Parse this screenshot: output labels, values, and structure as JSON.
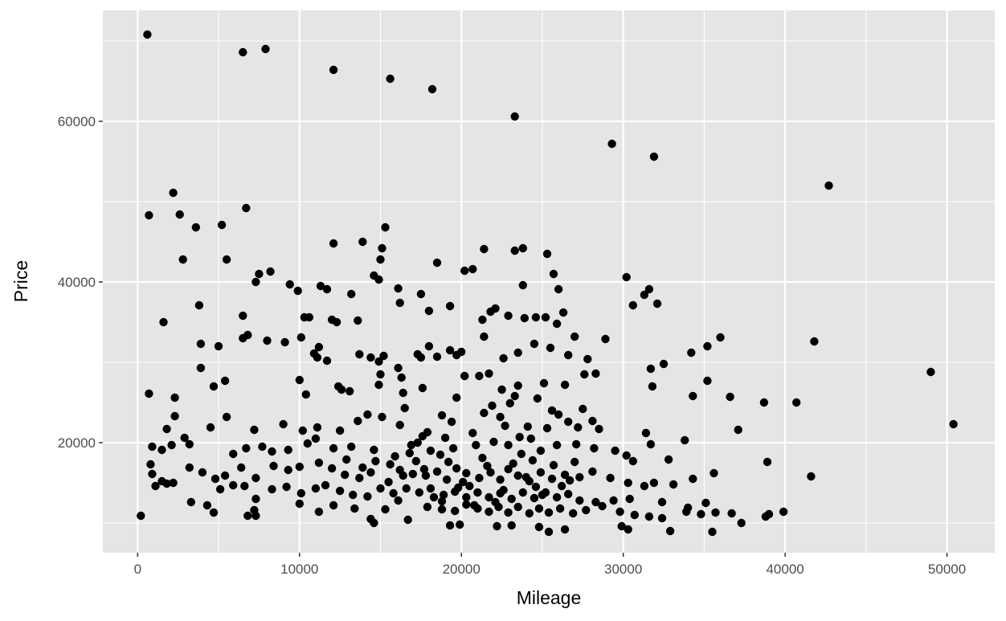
{
  "chart_data": {
    "type": "scatter",
    "xlabel": "Mileage",
    "ylabel": "Price",
    "xlim": [
      -2150,
      52950
    ],
    "ylim": [
      6300,
      73800
    ],
    "x_ticks": [
      0,
      10000,
      20000,
      30000,
      40000,
      50000
    ],
    "x_tick_labels": [
      "0",
      "10000",
      "20000",
      "30000",
      "40000",
      "50000"
    ],
    "y_ticks": [
      20000,
      40000,
      60000
    ],
    "y_tick_labels": [
      "20000",
      "40000",
      "60000"
    ],
    "grid": true,
    "colors": {
      "panel": "#e5e5e5",
      "grid": "#ffffff",
      "point": "#000000"
    },
    "points": [
      [
        600,
        70800
      ],
      [
        6500,
        68600
      ],
      [
        7900,
        69000
      ],
      [
        12100,
        66400
      ],
      [
        15600,
        65300
      ],
      [
        18200,
        64000
      ],
      [
        23300,
        60600
      ],
      [
        29300,
        57200
      ],
      [
        31900,
        55600
      ],
      [
        42700,
        52000
      ],
      [
        2200,
        51100
      ],
      [
        700,
        48300
      ],
      [
        2600,
        48400
      ],
      [
        6700,
        49200
      ],
      [
        5200,
        47100
      ],
      [
        3600,
        46800
      ],
      [
        2800,
        42800
      ],
      [
        5500,
        42800
      ],
      [
        15300,
        46800
      ],
      [
        12100,
        44800
      ],
      [
        13900,
        45000
      ],
      [
        15100,
        44200
      ],
      [
        21400,
        44100
      ],
      [
        23300,
        43900
      ],
      [
        23800,
        44200
      ],
      [
        25300,
        43500
      ],
      [
        7500,
        41000
      ],
      [
        7300,
        40000
      ],
      [
        8200,
        41300
      ],
      [
        9400,
        39700
      ],
      [
        9900,
        38900
      ],
      [
        11300,
        39500
      ],
      [
        11700,
        39100
      ],
      [
        14600,
        40800
      ],
      [
        14900,
        40300
      ],
      [
        13200,
        38500
      ],
      [
        15000,
        42800
      ],
      [
        16100,
        39200
      ],
      [
        18500,
        42400
      ],
      [
        20200,
        41400
      ],
      [
        20700,
        41600
      ],
      [
        25700,
        41000
      ],
      [
        23800,
        39600
      ],
      [
        26000,
        39100
      ],
      [
        30200,
        40600
      ],
      [
        31600,
        39100
      ],
      [
        31300,
        38400
      ],
      [
        32100,
        37300
      ],
      [
        30600,
        37100
      ],
      [
        3800,
        37100
      ],
      [
        1600,
        35000
      ],
      [
        6500,
        35800
      ],
      [
        10300,
        35600
      ],
      [
        10600,
        35600
      ],
      [
        12300,
        35000
      ],
      [
        12000,
        35300
      ],
      [
        13600,
        35200
      ],
      [
        16200,
        37400
      ],
      [
        17500,
        38500
      ],
      [
        18000,
        36400
      ],
      [
        19300,
        37000
      ],
      [
        21300,
        35300
      ],
      [
        21800,
        36300
      ],
      [
        22100,
        36700
      ],
      [
        22900,
        35800
      ],
      [
        23900,
        35500
      ],
      [
        24600,
        35600
      ],
      [
        25200,
        35600
      ],
      [
        25900,
        34800
      ],
      [
        26300,
        36200
      ],
      [
        28900,
        32900
      ],
      [
        3900,
        32300
      ],
      [
        5000,
        32000
      ],
      [
        6500,
        33000
      ],
      [
        6800,
        33400
      ],
      [
        8000,
        32700
      ],
      [
        9100,
        32500
      ],
      [
        10100,
        33100
      ],
      [
        10900,
        31100
      ],
      [
        11200,
        31900
      ],
      [
        11700,
        30200
      ],
      [
        11100,
        30600
      ],
      [
        13700,
        31000
      ],
      [
        14400,
        30600
      ],
      [
        14900,
        30100
      ],
      [
        15200,
        30800
      ],
      [
        16100,
        29300
      ],
      [
        17300,
        31000
      ],
      [
        17500,
        30600
      ],
      [
        18000,
        32000
      ],
      [
        18500,
        30700
      ],
      [
        19300,
        31500
      ],
      [
        19700,
        30900
      ],
      [
        20000,
        31300
      ],
      [
        21400,
        33200
      ],
      [
        22600,
        30500
      ],
      [
        23500,
        31200
      ],
      [
        24500,
        32300
      ],
      [
        25500,
        31800
      ],
      [
        26600,
        30900
      ],
      [
        27000,
        33200
      ],
      [
        27800,
        30400
      ],
      [
        31700,
        29200
      ],
      [
        32500,
        29800
      ],
      [
        34200,
        31200
      ],
      [
        35200,
        32000
      ],
      [
        36000,
        33100
      ],
      [
        41800,
        32600
      ],
      [
        3900,
        29300
      ],
      [
        4700,
        27000
      ],
      [
        5400,
        27700
      ],
      [
        10000,
        27800
      ],
      [
        10400,
        26000
      ],
      [
        12400,
        27000
      ],
      [
        12600,
        26600
      ],
      [
        13100,
        26400
      ],
      [
        14900,
        27200
      ],
      [
        15000,
        28500
      ],
      [
        16300,
        28100
      ],
      [
        16400,
        26200
      ],
      [
        17600,
        26800
      ],
      [
        19700,
        25600
      ],
      [
        20200,
        28300
      ],
      [
        21100,
        28300
      ],
      [
        21700,
        28600
      ],
      [
        22500,
        26600
      ],
      [
        23500,
        27100
      ],
      [
        24700,
        25500
      ],
      [
        25100,
        27400
      ],
      [
        26400,
        27200
      ],
      [
        27600,
        28500
      ],
      [
        28300,
        28600
      ],
      [
        31800,
        27000
      ],
      [
        35200,
        27700
      ],
      [
        34300,
        25800
      ],
      [
        36600,
        25700
      ],
      [
        38700,
        25000
      ],
      [
        40700,
        25000
      ],
      [
        49000,
        28800
      ],
      [
        700,
        26100
      ],
      [
        2300,
        25600
      ],
      [
        2300,
        23300
      ],
      [
        1800,
        21700
      ],
      [
        2900,
        20600
      ],
      [
        4500,
        21900
      ],
      [
        5500,
        23200
      ],
      [
        7200,
        21600
      ],
      [
        9000,
        22300
      ],
      [
        10200,
        21500
      ],
      [
        11100,
        21900
      ],
      [
        12500,
        21500
      ],
      [
        13600,
        22700
      ],
      [
        14200,
        23500
      ],
      [
        15100,
        23200
      ],
      [
        16200,
        22200
      ],
      [
        16500,
        24300
      ],
      [
        17900,
        21300
      ],
      [
        18800,
        23400
      ],
      [
        19400,
        22600
      ],
      [
        21400,
        23700
      ],
      [
        22400,
        23200
      ],
      [
        23000,
        24900
      ],
      [
        24100,
        22000
      ],
      [
        25600,
        24000
      ],
      [
        26600,
        22600
      ],
      [
        27200,
        21900
      ],
      [
        28100,
        22700
      ],
      [
        31400,
        21200
      ],
      [
        31700,
        19800
      ],
      [
        33800,
        20300
      ],
      [
        37100,
        21600
      ],
      [
        50400,
        22300
      ],
      [
        900,
        19500
      ],
      [
        1500,
        19100
      ],
      [
        2100,
        19700
      ],
      [
        3200,
        19800
      ],
      [
        5900,
        18600
      ],
      [
        6700,
        19300
      ],
      [
        7700,
        19500
      ],
      [
        8300,
        18900
      ],
      [
        9300,
        19100
      ],
      [
        10500,
        19900
      ],
      [
        11000,
        20500
      ],
      [
        12100,
        19300
      ],
      [
        13200,
        19500
      ],
      [
        14600,
        19100
      ],
      [
        15900,
        18300
      ],
      [
        16900,
        19700
      ],
      [
        17600,
        20800
      ],
      [
        18100,
        19000
      ],
      [
        18700,
        18500
      ],
      [
        19500,
        19300
      ],
      [
        20900,
        19700
      ],
      [
        22000,
        20100
      ],
      [
        22900,
        19700
      ],
      [
        23600,
        20700
      ],
      [
        24900,
        19000
      ],
      [
        25900,
        19700
      ],
      [
        27100,
        19800
      ],
      [
        28200,
        19300
      ],
      [
        29500,
        19000
      ],
      [
        30200,
        18400
      ],
      [
        30600,
        17700
      ],
      [
        32800,
        17900
      ],
      [
        38900,
        17600
      ],
      [
        800,
        17300
      ],
      [
        900,
        16100
      ],
      [
        1500,
        15200
      ],
      [
        2200,
        15000
      ],
      [
        3200,
        16900
      ],
      [
        4000,
        16300
      ],
      [
        4800,
        15500
      ],
      [
        5400,
        15900
      ],
      [
        6400,
        16900
      ],
      [
        7300,
        15600
      ],
      [
        8400,
        17100
      ],
      [
        9300,
        16600
      ],
      [
        10000,
        17000
      ],
      [
        11200,
        17500
      ],
      [
        12000,
        16800
      ],
      [
        12800,
        16000
      ],
      [
        13700,
        15600
      ],
      [
        14400,
        16300
      ],
      [
        15500,
        15100
      ],
      [
        16200,
        16600
      ],
      [
        17000,
        16100
      ],
      [
        17800,
        15900
      ],
      [
        18500,
        16400
      ],
      [
        19100,
        15400
      ],
      [
        19700,
        16800
      ],
      [
        20300,
        16200
      ],
      [
        21100,
        15600
      ],
      [
        21800,
        16300
      ],
      [
        22400,
        15400
      ],
      [
        22900,
        16700
      ],
      [
        23500,
        15900
      ],
      [
        24200,
        15200
      ],
      [
        24900,
        16300
      ],
      [
        25600,
        15500
      ],
      [
        26400,
        16000
      ],
      [
        27300,
        15700
      ],
      [
        28100,
        16400
      ],
      [
        29200,
        15600
      ],
      [
        30300,
        15000
      ],
      [
        31300,
        14600
      ],
      [
        31900,
        15000
      ],
      [
        33100,
        14800
      ],
      [
        34300,
        15500
      ],
      [
        35600,
        16200
      ],
      [
        41600,
        15800
      ],
      [
        1100,
        14600
      ],
      [
        1800,
        14900
      ],
      [
        3300,
        12600
      ],
      [
        4300,
        12200
      ],
      [
        5100,
        14200
      ],
      [
        5900,
        14700
      ],
      [
        6600,
        14600
      ],
      [
        7300,
        13000
      ],
      [
        8300,
        14200
      ],
      [
        9200,
        14500
      ],
      [
        10100,
        13700
      ],
      [
        11000,
        14300
      ],
      [
        11600,
        14700
      ],
      [
        12500,
        14000
      ],
      [
        13300,
        13500
      ],
      [
        14200,
        13300
      ],
      [
        15000,
        14300
      ],
      [
        15800,
        13700
      ],
      [
        16600,
        14300
      ],
      [
        17400,
        13800
      ],
      [
        18100,
        14300
      ],
      [
        18900,
        13500
      ],
      [
        19600,
        13900
      ],
      [
        20300,
        13200
      ],
      [
        21000,
        13800
      ],
      [
        21700,
        13200
      ],
      [
        22400,
        13700
      ],
      [
        23100,
        13000
      ],
      [
        23800,
        13800
      ],
      [
        24500,
        13100
      ],
      [
        25200,
        13800
      ],
      [
        25900,
        13200
      ],
      [
        26600,
        13600
      ],
      [
        27300,
        12800
      ],
      [
        28300,
        12600
      ],
      [
        29400,
        12800
      ],
      [
        30400,
        13000
      ],
      [
        32400,
        12600
      ],
      [
        34000,
        11900
      ],
      [
        35100,
        12500
      ],
      [
        200,
        10900
      ],
      [
        4700,
        11300
      ],
      [
        6800,
        10900
      ],
      [
        7200,
        11600
      ],
      [
        7300,
        10900
      ],
      [
        10000,
        12400
      ],
      [
        11200,
        11400
      ],
      [
        12100,
        12200
      ],
      [
        13400,
        11800
      ],
      [
        14400,
        10500
      ],
      [
        15300,
        11700
      ],
      [
        16100,
        12800
      ],
      [
        16700,
        10400
      ],
      [
        17900,
        12000
      ],
      [
        18800,
        11700
      ],
      [
        19600,
        11500
      ],
      [
        20300,
        12300
      ],
      [
        21000,
        11800
      ],
      [
        21700,
        11400
      ],
      [
        22300,
        12000
      ],
      [
        22900,
        11300
      ],
      [
        23500,
        12000
      ],
      [
        24200,
        11200
      ],
      [
        24800,
        11800
      ],
      [
        25400,
        11300
      ],
      [
        26100,
        11800
      ],
      [
        26900,
        11200
      ],
      [
        27700,
        11600
      ],
      [
        28700,
        12100
      ],
      [
        29800,
        11400
      ],
      [
        30700,
        11000
      ],
      [
        31600,
        10800
      ],
      [
        32400,
        10600
      ],
      [
        33900,
        11400
      ],
      [
        34800,
        11100
      ],
      [
        35700,
        11300
      ],
      [
        36700,
        11200
      ],
      [
        38800,
        10800
      ],
      [
        39900,
        11400
      ],
      [
        14600,
        10000
      ],
      [
        19300,
        9700
      ],
      [
        19900,
        9800
      ],
      [
        22200,
        9600
      ],
      [
        23100,
        9700
      ],
      [
        24800,
        9500
      ],
      [
        25400,
        8900
      ],
      [
        26400,
        9200
      ],
      [
        29900,
        9600
      ],
      [
        30300,
        9200
      ],
      [
        32900,
        9000
      ],
      [
        35500,
        8900
      ],
      [
        37300,
        10000
      ],
      [
        39000,
        11100
      ],
      [
        18800,
        12700
      ],
      [
        19200,
        17600
      ],
      [
        20500,
        14600
      ],
      [
        20800,
        12200
      ],
      [
        21600,
        17100
      ],
      [
        22600,
        14100
      ],
      [
        23200,
        17400
      ],
      [
        24000,
        15700
      ],
      [
        24600,
        14500
      ],
      [
        25700,
        17200
      ],
      [
        26200,
        14600
      ],
      [
        27000,
        17600
      ],
      [
        17200,
        17700
      ],
      [
        16400,
        15900
      ],
      [
        15600,
        17300
      ],
      [
        14700,
        17700
      ],
      [
        13900,
        16900
      ],
      [
        12900,
        17900
      ],
      [
        19800,
        14400
      ],
      [
        20100,
        15100
      ],
      [
        21300,
        18100
      ],
      [
        22100,
        12600
      ],
      [
        23700,
        18600
      ],
      [
        24400,
        17800
      ],
      [
        25000,
        13500
      ],
      [
        26700,
        15300
      ],
      [
        18300,
        13200
      ],
      [
        17700,
        16700
      ],
      [
        16800,
        18700
      ],
      [
        20700,
        21200
      ],
      [
        22700,
        22100
      ],
      [
        24300,
        20500
      ],
      [
        25300,
        21800
      ],
      [
        19000,
        20600
      ],
      [
        17300,
        20000
      ],
      [
        21900,
        24600
      ],
      [
        23300,
        25800
      ],
      [
        26000,
        23500
      ],
      [
        27500,
        24200
      ],
      [
        28500,
        21700
      ]
    ]
  }
}
